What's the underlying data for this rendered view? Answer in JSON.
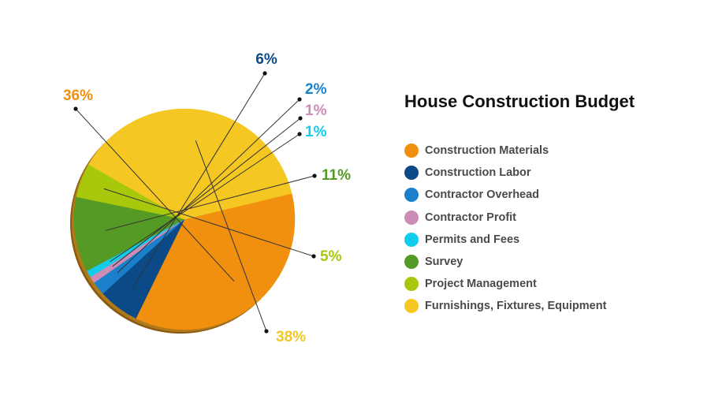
{
  "chart_data": {
    "type": "pie",
    "title": "House Construction Budget",
    "legend_position": "right",
    "slices": [
      {
        "name": "Construction Materials",
        "value": 36,
        "label": "36%",
        "color": "#F0900E"
      },
      {
        "name": "Construction Labor",
        "value": 6,
        "label": "6%",
        "color": "#0B4A86"
      },
      {
        "name": "Contractor Overhead",
        "value": 2,
        "label": "2%",
        "color": "#1A80CC"
      },
      {
        "name": "Contractor Profit",
        "value": 1,
        "label": "1%",
        "color": "#CC8CB6"
      },
      {
        "name": "Permits and Fees",
        "value": 1,
        "label": "1%",
        "color": "#12CCEC"
      },
      {
        "name": "Survey",
        "value": 11,
        "label": "11%",
        "color": "#559A25"
      },
      {
        "name": "Project Management",
        "value": 5,
        "label": "5%",
        "color": "#A8C80C"
      },
      {
        "name": "Furnishings, Fixtures, Equipment",
        "value": 38,
        "label": "38%",
        "color": "#F4C722"
      }
    ]
  }
}
